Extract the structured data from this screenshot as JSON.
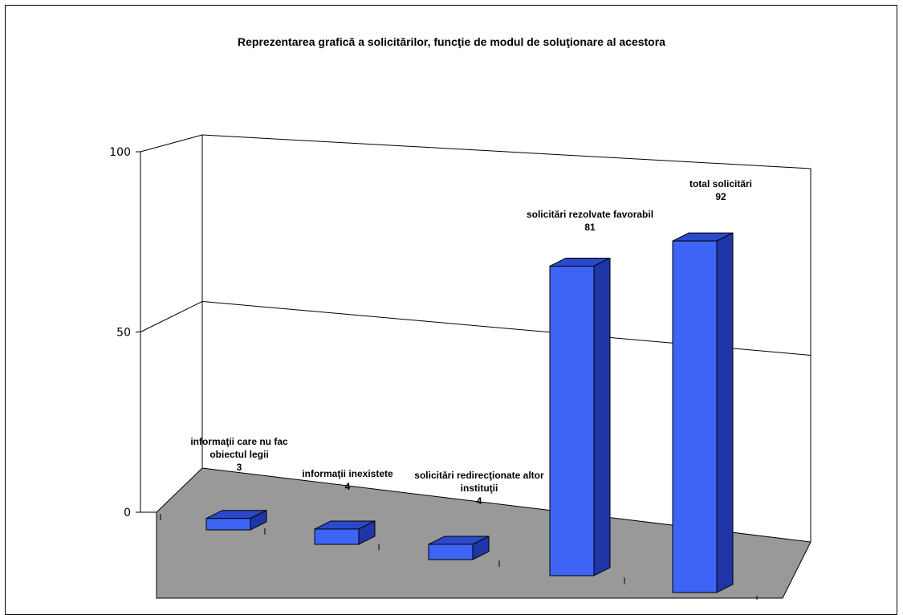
{
  "chart_data": {
    "type": "bar",
    "title": "Reprezentarea grafică a solicitărilor, funcţie de  modul de soluţionare al acestora",
    "ylim": [
      0,
      100
    ],
    "y_ticks": [
      "0",
      "50",
      "100"
    ],
    "grid": true,
    "legend": "none",
    "categories": [
      [
        "informaţii care  nu fac",
        "obiectul legii"
      ],
      [
        "informaţii inexistete"
      ],
      [
        "solicitări redirecţionate altor",
        "instituţii"
      ],
      [
        "solicitări rezolvate favorabil"
      ],
      [
        "total solicitări"
      ]
    ],
    "values": [
      3,
      4,
      4,
      81,
      92
    ],
    "value_labels": [
      "3",
      "4",
      "4",
      "81",
      "92"
    ],
    "colors": {
      "bar_front": "#3d64f5",
      "bar_top": "#2b49c8",
      "bar_side": "#1f36a8",
      "floor": "#999999"
    }
  }
}
